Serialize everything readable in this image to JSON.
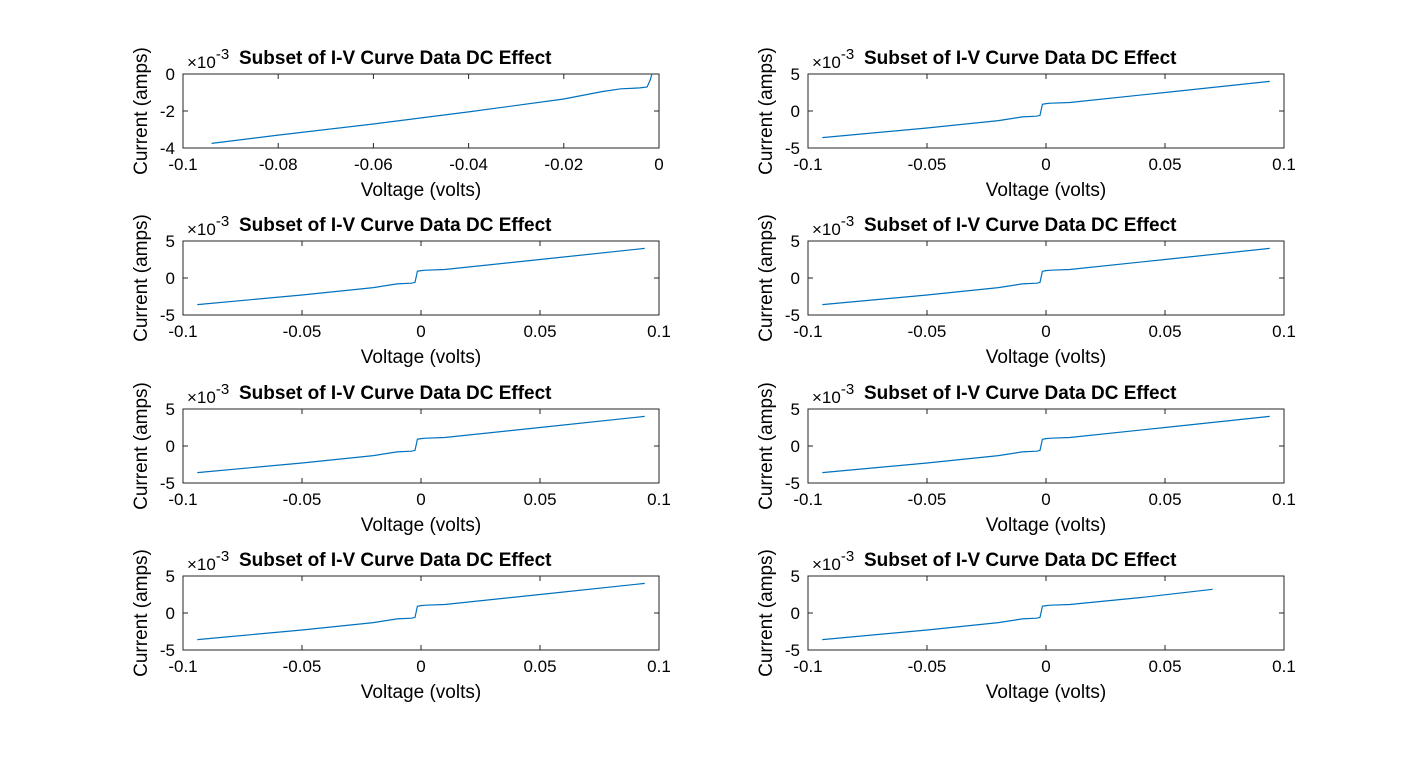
{
  "chart_data": [
    {
      "type": "line",
      "title": "Subset of I-V Curve Data DC Effect",
      "xlabel": "Voltage (volts)",
      "ylabel": "Current (amps)",
      "y_exponent_base": "×10",
      "y_exponent": "-3",
      "xlim": [
        -0.1,
        0
      ],
      "ylim": [
        -4,
        0
      ],
      "xticks": [
        -0.1,
        -0.08,
        -0.06,
        -0.04,
        -0.02,
        0
      ],
      "xtick_labels": [
        "-0.1",
        "-0.08",
        "-0.06",
        "-0.04",
        "-0.02",
        "0"
      ],
      "yticks": [
        -4,
        -2,
        0
      ],
      "ytick_labels": [
        "-4",
        "-2",
        "0"
      ],
      "line_color": "#0072bd",
      "series": [
        {
          "x": [
            -0.094,
            -0.08,
            -0.06,
            -0.04,
            -0.02,
            -0.012,
            -0.008,
            -0.004,
            -0.0025,
            -0.0018,
            -0.0015
          ],
          "y": [
            -3.75,
            -3.3,
            -2.7,
            -2.05,
            -1.35,
            -0.95,
            -0.8,
            -0.75,
            -0.7,
            -0.3,
            0
          ]
        }
      ]
    },
    {
      "type": "line",
      "title": "Subset of I-V Curve Data DC Effect",
      "xlabel": "Voltage (volts)",
      "ylabel": "Current (amps)",
      "y_exponent_base": "×10",
      "y_exponent": "-3",
      "xlim": [
        -0.1,
        0.1
      ],
      "ylim": [
        -5,
        5
      ],
      "xticks": [
        -0.1,
        -0.05,
        0,
        0.05,
        0.1
      ],
      "xtick_labels": [
        "-0.1",
        "-0.05",
        "0",
        "0.05",
        "0.1"
      ],
      "yticks": [
        -5,
        0,
        5
      ],
      "ytick_labels": [
        "-5",
        "0",
        "5"
      ],
      "line_color": "#0072bd",
      "series": [
        {
          "x": [
            -0.094,
            -0.05,
            -0.02,
            -0.01,
            -0.004,
            -0.0025,
            -0.0015,
            0,
            0.002,
            0.01,
            0.05,
            0.094
          ],
          "y": [
            -3.6,
            -2.3,
            -1.3,
            -0.8,
            -0.7,
            -0.6,
            0.9,
            1.0,
            1.05,
            1.15,
            2.5,
            4.0
          ]
        }
      ]
    },
    {
      "type": "line",
      "title": "Subset of I-V Curve Data DC Effect",
      "xlabel": "Voltage (volts)",
      "ylabel": "Current (amps)",
      "y_exponent_base": "×10",
      "y_exponent": "-3",
      "xlim": [
        -0.1,
        0.1
      ],
      "ylim": [
        -5,
        5
      ],
      "xticks": [
        -0.1,
        -0.05,
        0,
        0.05,
        0.1
      ],
      "xtick_labels": [
        "-0.1",
        "-0.05",
        "0",
        "0.05",
        "0.1"
      ],
      "yticks": [
        -5,
        0,
        5
      ],
      "ytick_labels": [
        "-5",
        "0",
        "5"
      ],
      "line_color": "#0072bd",
      "series": [
        {
          "x": [
            -0.094,
            -0.05,
            -0.02,
            -0.01,
            -0.004,
            -0.0025,
            -0.0015,
            0,
            0.002,
            0.01,
            0.05,
            0.094
          ],
          "y": [
            -3.6,
            -2.3,
            -1.3,
            -0.8,
            -0.7,
            -0.6,
            0.9,
            1.0,
            1.05,
            1.15,
            2.5,
            4.0
          ]
        }
      ]
    },
    {
      "type": "line",
      "title": "Subset of I-V Curve Data DC Effect",
      "xlabel": "Voltage (volts)",
      "ylabel": "Current (amps)",
      "y_exponent_base": "×10",
      "y_exponent": "-3",
      "xlim": [
        -0.1,
        0.1
      ],
      "ylim": [
        -5,
        5
      ],
      "xticks": [
        -0.1,
        -0.05,
        0,
        0.05,
        0.1
      ],
      "xtick_labels": [
        "-0.1",
        "-0.05",
        "0",
        "0.05",
        "0.1"
      ],
      "yticks": [
        -5,
        0,
        5
      ],
      "ytick_labels": [
        "-5",
        "0",
        "5"
      ],
      "line_color": "#0072bd",
      "series": [
        {
          "x": [
            -0.094,
            -0.05,
            -0.02,
            -0.01,
            -0.004,
            -0.0025,
            -0.0015,
            0,
            0.002,
            0.01,
            0.05,
            0.094
          ],
          "y": [
            -3.6,
            -2.3,
            -1.3,
            -0.8,
            -0.7,
            -0.6,
            0.9,
            1.0,
            1.05,
            1.15,
            2.5,
            4.0
          ]
        }
      ]
    },
    {
      "type": "line",
      "title": "Subset of I-V Curve Data DC Effect",
      "xlabel": "Voltage (volts)",
      "ylabel": "Current (amps)",
      "y_exponent_base": "×10",
      "y_exponent": "-3",
      "xlim": [
        -0.1,
        0.1
      ],
      "ylim": [
        -5,
        5
      ],
      "xticks": [
        -0.1,
        -0.05,
        0,
        0.05,
        0.1
      ],
      "xtick_labels": [
        "-0.1",
        "-0.05",
        "0",
        "0.05",
        "0.1"
      ],
      "yticks": [
        -5,
        0,
        5
      ],
      "ytick_labels": [
        "-5",
        "0",
        "5"
      ],
      "line_color": "#0072bd",
      "series": [
        {
          "x": [
            -0.094,
            -0.05,
            -0.02,
            -0.01,
            -0.004,
            -0.0025,
            -0.0015,
            0,
            0.002,
            0.01,
            0.05,
            0.094
          ],
          "y": [
            -3.6,
            -2.3,
            -1.3,
            -0.8,
            -0.7,
            -0.6,
            0.9,
            1.0,
            1.05,
            1.15,
            2.5,
            4.0
          ]
        }
      ]
    },
    {
      "type": "line",
      "title": "Subset of I-V Curve Data DC Effect",
      "xlabel": "Voltage (volts)",
      "ylabel": "Current (amps)",
      "y_exponent_base": "×10",
      "y_exponent": "-3",
      "xlim": [
        -0.1,
        0.1
      ],
      "ylim": [
        -5,
        5
      ],
      "xticks": [
        -0.1,
        -0.05,
        0,
        0.05,
        0.1
      ],
      "xtick_labels": [
        "-0.1",
        "-0.05",
        "0",
        "0.05",
        "0.1"
      ],
      "yticks": [
        -5,
        0,
        5
      ],
      "ytick_labels": [
        "-5",
        "0",
        "5"
      ],
      "line_color": "#0072bd",
      "series": [
        {
          "x": [
            -0.094,
            -0.05,
            -0.02,
            -0.01,
            -0.004,
            -0.0025,
            -0.0015,
            0,
            0.002,
            0.01,
            0.05,
            0.094
          ],
          "y": [
            -3.6,
            -2.3,
            -1.3,
            -0.8,
            -0.7,
            -0.6,
            0.9,
            1.0,
            1.05,
            1.15,
            2.5,
            4.0
          ]
        }
      ]
    },
    {
      "type": "line",
      "title": "Subset of I-V Curve Data DC Effect",
      "xlabel": "Voltage (volts)",
      "ylabel": "Current (amps)",
      "y_exponent_base": "×10",
      "y_exponent": "-3",
      "xlim": [
        -0.1,
        0.1
      ],
      "ylim": [
        -5,
        5
      ],
      "xticks": [
        -0.1,
        -0.05,
        0,
        0.05,
        0.1
      ],
      "xtick_labels": [
        "-0.1",
        "-0.05",
        "0",
        "0.05",
        "0.1"
      ],
      "yticks": [
        -5,
        0,
        5
      ],
      "ytick_labels": [
        "-5",
        "0",
        "5"
      ],
      "line_color": "#0072bd",
      "series": [
        {
          "x": [
            -0.094,
            -0.05,
            -0.02,
            -0.01,
            -0.004,
            -0.0025,
            -0.0015,
            0,
            0.002,
            0.01,
            0.05,
            0.094
          ],
          "y": [
            -3.6,
            -2.3,
            -1.3,
            -0.8,
            -0.7,
            -0.6,
            0.9,
            1.0,
            1.05,
            1.15,
            2.5,
            4.0
          ]
        }
      ]
    },
    {
      "type": "line",
      "title": "Subset of I-V Curve Data DC Effect",
      "xlabel": "Voltage (volts)",
      "ylabel": "Current (amps)",
      "y_exponent_base": "×10",
      "y_exponent": "-3",
      "xlim": [
        -0.1,
        0.1
      ],
      "ylim": [
        -5,
        5
      ],
      "xticks": [
        -0.1,
        -0.05,
        0,
        0.05,
        0.1
      ],
      "xtick_labels": [
        "-0.1",
        "-0.05",
        "0",
        "0.05",
        "0.1"
      ],
      "yticks": [
        -5,
        0,
        5
      ],
      "ytick_labels": [
        "-5",
        "0",
        "5"
      ],
      "line_color": "#0072bd",
      "series": [
        {
          "x": [
            -0.094,
            -0.05,
            -0.02,
            -0.01,
            -0.004,
            -0.0025,
            -0.0015,
            0,
            0.002,
            0.01,
            0.04,
            0.07
          ],
          "y": [
            -3.6,
            -2.3,
            -1.3,
            -0.8,
            -0.7,
            -0.6,
            0.9,
            1.0,
            1.05,
            1.15,
            2.1,
            3.2
          ]
        }
      ]
    }
  ]
}
